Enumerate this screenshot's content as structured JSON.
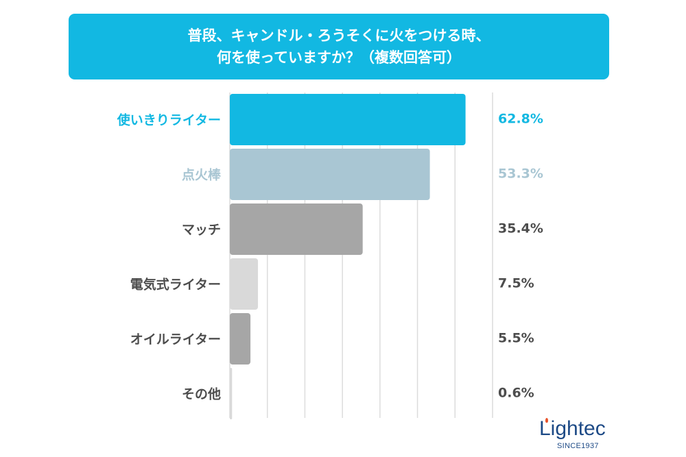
{
  "title": {
    "line1": "普段、キャンドル・ろうそくに火をつける時、",
    "line2": "何を使っていますか？（複数回答可）"
  },
  "chart_data": {
    "type": "bar",
    "orientation": "horizontal",
    "title": "普段、キャンドル・ろうそくに火をつける時、何を使っていますか？（複数回答可）",
    "categories": [
      "使いきりライター",
      "点火棒",
      "マッチ",
      "電気式ライター",
      "オイルライター",
      "その他"
    ],
    "values": [
      62.8,
      53.3,
      35.4,
      7.5,
      5.5,
      0.6
    ],
    "value_labels": [
      "62.8%",
      "53.3%",
      "35.4%",
      "7.5%",
      "5.5%",
      "0.6%"
    ],
    "bar_colors": [
      "#12b8e2",
      "#a9c6d3",
      "#a6a6a6",
      "#d9d9d9",
      "#a6a6a6",
      "#d9d9d9"
    ],
    "label_colors": [
      "#12b8e2",
      "#a9c6d3",
      "#4d4d4d",
      "#4d4d4d",
      "#4d4d4d",
      "#4d4d4d"
    ],
    "xlim": [
      0,
      70
    ],
    "grid_step": 10,
    "grid": true,
    "xlabel": "",
    "ylabel": ""
  },
  "logo": {
    "name": "Lightec",
    "tagline": "SINCE1937"
  }
}
